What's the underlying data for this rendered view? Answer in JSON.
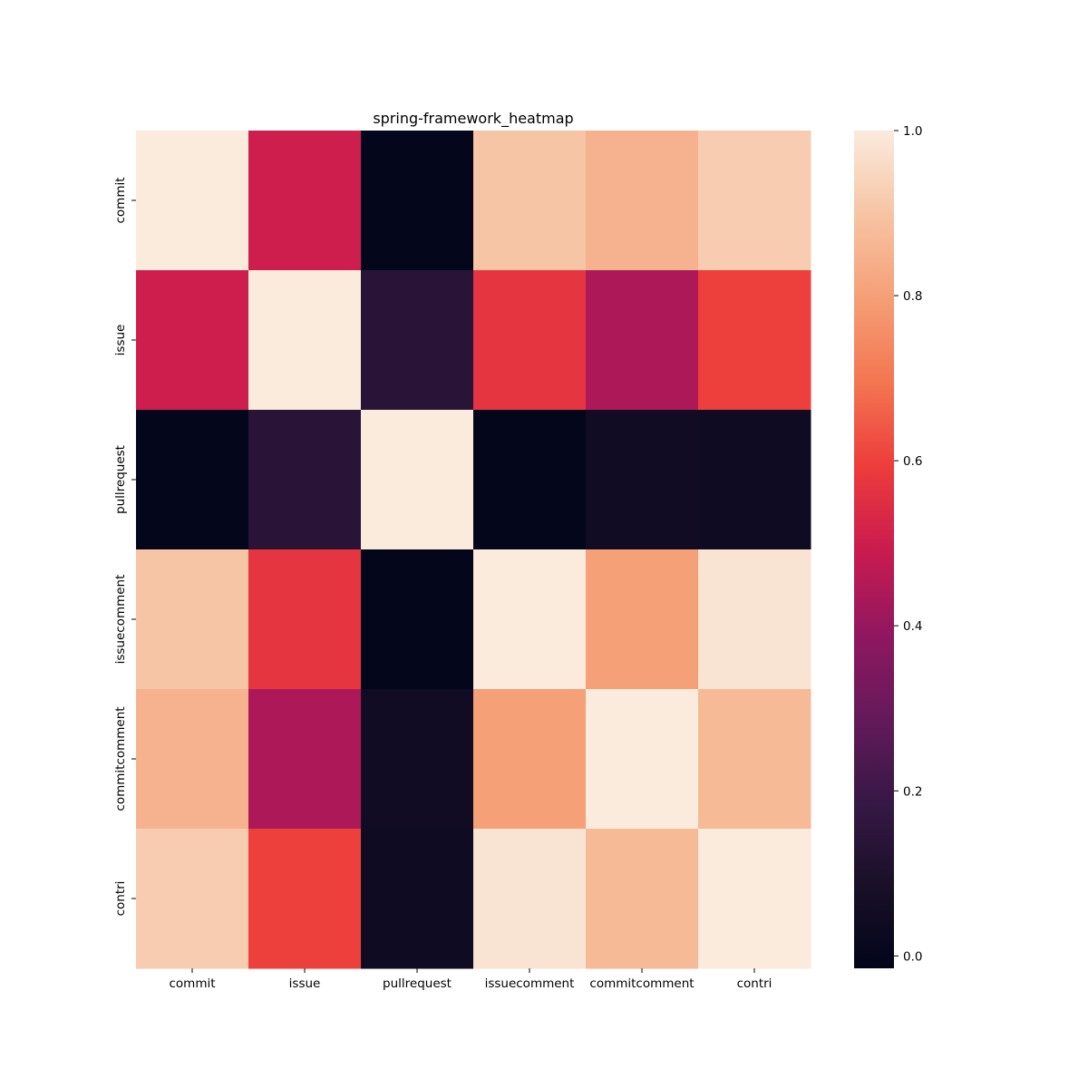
{
  "chart_data": {
    "type": "heatmap",
    "title": "spring-framework_heatmap",
    "x_labels": [
      "commit",
      "issue",
      "pullrequest",
      "issuecomment",
      "commitcomment",
      "contri"
    ],
    "y_labels": [
      "commit",
      "issue",
      "pullrequest",
      "issuecomment",
      "commitcomment",
      "contri"
    ],
    "values": [
      [
        1.0,
        0.5,
        -0.01,
        0.9,
        0.85,
        0.92
      ],
      [
        0.5,
        1.0,
        0.14,
        0.57,
        0.44,
        0.6
      ],
      [
        -0.01,
        0.14,
        1.0,
        -0.01,
        0.05,
        0.04
      ],
      [
        0.9,
        0.57,
        -0.01,
        1.0,
        0.8,
        0.98
      ],
      [
        0.85,
        0.44,
        0.05,
        0.8,
        1.0,
        0.87
      ],
      [
        0.92,
        0.6,
        0.04,
        0.98,
        0.87,
        1.0
      ]
    ],
    "colorbar": {
      "min": -0.015,
      "max": 1.0,
      "ticks": [
        0.0,
        0.2,
        0.4,
        0.6,
        0.8,
        1.0
      ],
      "tick_labels": [
        "0.0",
        "0.2",
        "0.4",
        "0.6",
        "0.8",
        "1.0"
      ],
      "colormap": "rocket"
    }
  }
}
